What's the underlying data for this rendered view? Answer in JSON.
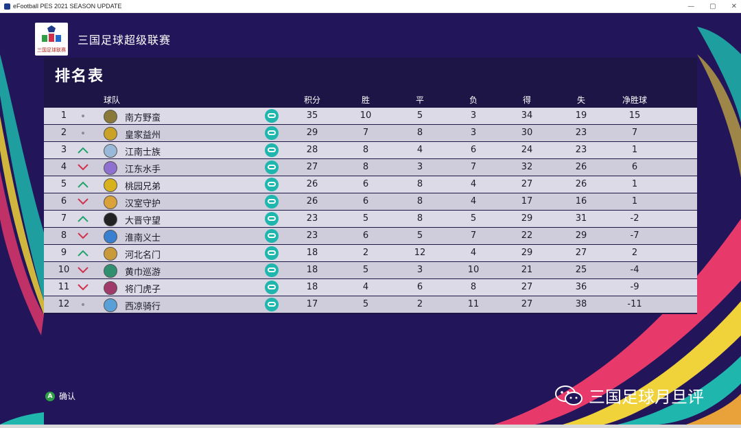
{
  "window": {
    "title": "eFootball PES 2021 SEASON UPDATE"
  },
  "league": {
    "name": "三国足球超级联赛",
    "logo_text": "三国足球联赛"
  },
  "table": {
    "title": "排名表",
    "columns": {
      "team": "球队",
      "points": "积分",
      "won": "胜",
      "drawn": "平",
      "lost": "负",
      "gf": "得",
      "ga": "失",
      "gd": "净胜球"
    },
    "rows": [
      {
        "rank": "1",
        "trend": "same",
        "team": "南方野蛮",
        "crest_color": "#8a7a3a",
        "points": "35",
        "won": "10",
        "drawn": "5",
        "lost": "3",
        "gf": "34",
        "ga": "19",
        "gd": "15"
      },
      {
        "rank": "2",
        "trend": "same",
        "team": "皇家益州",
        "crest_color": "#c9a227",
        "points": "29",
        "won": "7",
        "drawn": "8",
        "lost": "3",
        "gf": "30",
        "ga": "23",
        "gd": "7"
      },
      {
        "rank": "3",
        "trend": "up",
        "team": "江南士族",
        "crest_color": "#9ab8d8",
        "points": "28",
        "won": "8",
        "drawn": "4",
        "lost": "6",
        "gf": "24",
        "ga": "23",
        "gd": "1"
      },
      {
        "rank": "4",
        "trend": "down",
        "team": "江东水手",
        "crest_color": "#8f6fd0",
        "points": "27",
        "won": "8",
        "drawn": "3",
        "lost": "7",
        "gf": "32",
        "ga": "26",
        "gd": "6"
      },
      {
        "rank": "5",
        "trend": "up",
        "team": "桃园兄弟",
        "crest_color": "#d8b21e",
        "points": "26",
        "won": "6",
        "drawn": "8",
        "lost": "4",
        "gf": "27",
        "ga": "26",
        "gd": "1"
      },
      {
        "rank": "6",
        "trend": "down",
        "team": "汉室守护",
        "crest_color": "#d9a23a",
        "points": "26",
        "won": "6",
        "drawn": "8",
        "lost": "4",
        "gf": "17",
        "ga": "16",
        "gd": "1"
      },
      {
        "rank": "7",
        "trend": "up",
        "team": "大晋守望",
        "crest_color": "#222222",
        "points": "23",
        "won": "5",
        "drawn": "8",
        "lost": "5",
        "gf": "29",
        "ga": "31",
        "gd": "-2"
      },
      {
        "rank": "8",
        "trend": "down",
        "team": "淮南义士",
        "crest_color": "#3a7fd0",
        "points": "23",
        "won": "6",
        "drawn": "5",
        "lost": "7",
        "gf": "22",
        "ga": "29",
        "gd": "-7"
      },
      {
        "rank": "9",
        "trend": "up",
        "team": "河北名门",
        "crest_color": "#c99a3a",
        "points": "18",
        "won": "2",
        "drawn": "12",
        "lost": "4",
        "gf": "29",
        "ga": "27",
        "gd": "2"
      },
      {
        "rank": "10",
        "trend": "down",
        "team": "黄巾巡游",
        "crest_color": "#2f8f6f",
        "points": "18",
        "won": "5",
        "drawn": "3",
        "lost": "10",
        "gf": "21",
        "ga": "25",
        "gd": "-4"
      },
      {
        "rank": "11",
        "trend": "down",
        "team": "将门虎子",
        "crest_color": "#a03a6a",
        "points": "18",
        "won": "4",
        "drawn": "6",
        "lost": "8",
        "gf": "27",
        "ga": "36",
        "gd": "-9"
      },
      {
        "rank": "12",
        "trend": "same",
        "team": "西凉骑行",
        "crest_color": "#5aa0d8",
        "points": "17",
        "won": "5",
        "drawn": "2",
        "lost": "11",
        "gf": "27",
        "ga": "38",
        "gd": "-11"
      }
    ]
  },
  "footer": {
    "confirm_button": "A",
    "confirm_label": "确认"
  },
  "watermark": {
    "text": "三国足球月旦评"
  },
  "colors": {
    "up": "#1fa36b",
    "down": "#d0304a",
    "controller": "#1fb6ad",
    "background": "#22155a"
  }
}
